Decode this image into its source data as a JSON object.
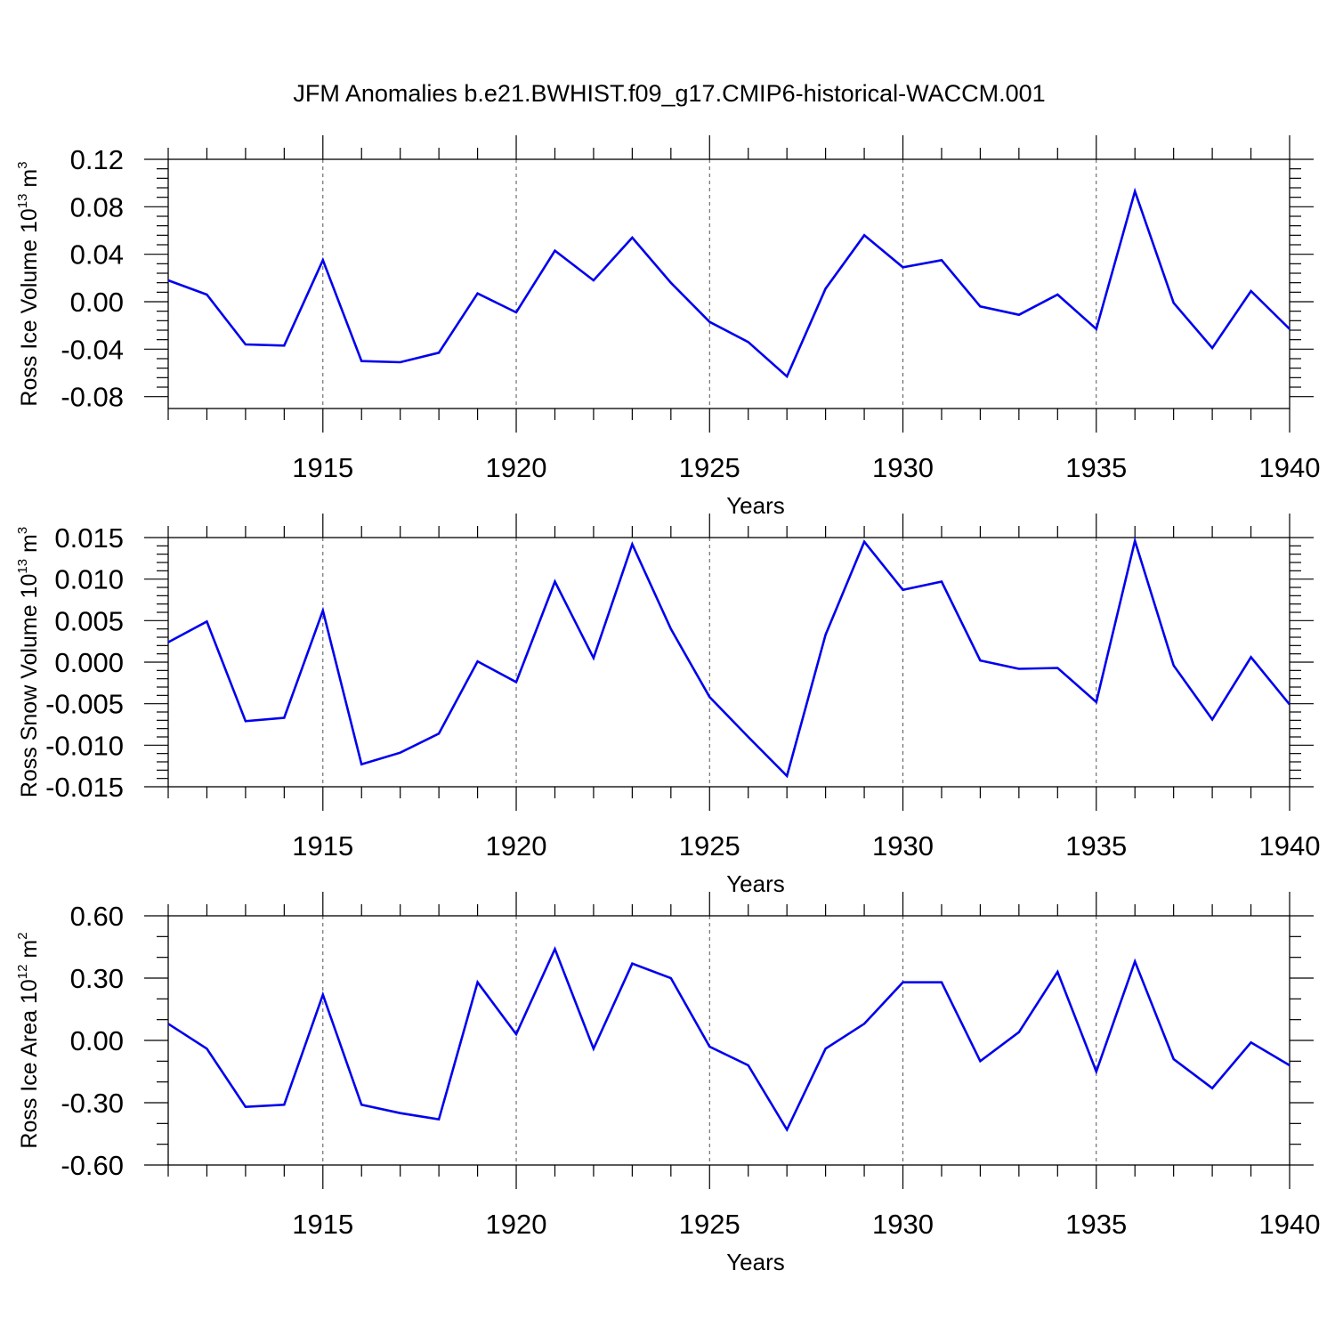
{
  "chart_data": {
    "title": "JFM Anomalies b.e21.BWHIST.f09_g17.CMIP6-historical-WACCM.001",
    "x": [
      1911,
      1912,
      1913,
      1914,
      1915,
      1916,
      1917,
      1918,
      1919,
      1920,
      1921,
      1922,
      1923,
      1924,
      1925,
      1926,
      1927,
      1928,
      1929,
      1930,
      1931,
      1932,
      1933,
      1934,
      1935,
      1936,
      1937,
      1938,
      1939,
      1940
    ],
    "panels": [
      {
        "type": "line",
        "ylabel": "Ross Ice Volume 10",
        "ylabel_exp": "13",
        "ylabel_unit": " m",
        "ylabel_unit_exp": "3",
        "xlabel": "Years",
        "xlim": [
          1911,
          1940
        ],
        "ylim": [
          -0.09,
          0.12
        ],
        "yticks": [
          0.12,
          0.08,
          0.04,
          0.0,
          -0.04,
          -0.08
        ],
        "ytick_labels": [
          "0.12",
          "0.08",
          "0.04",
          "0.00",
          "-0.04",
          "-0.08"
        ],
        "yminor_step": 0.008,
        "xticks": [
          1915,
          1920,
          1925,
          1930,
          1935,
          1940
        ],
        "xtick_labels": [
          "1915",
          "1920",
          "1925",
          "1930",
          "1935",
          "1940"
        ],
        "grid": "x",
        "series": [
          {
            "color": "#0000ee",
            "values": [
              0.018,
              0.006,
              -0.036,
              -0.037,
              0.035,
              -0.05,
              -0.051,
              -0.043,
              0.007,
              -0.009,
              0.043,
              0.018,
              0.054,
              0.016,
              -0.017,
              -0.034,
              -0.063,
              0.011,
              0.056,
              0.029,
              0.035,
              -0.004,
              -0.011,
              0.006,
              -0.023,
              0.093,
              -0.001,
              -0.039,
              0.009,
              -0.023
            ]
          }
        ]
      },
      {
        "type": "line",
        "ylabel": "Ross Snow Volume 10",
        "ylabel_exp": "13",
        "ylabel_unit": " m",
        "ylabel_unit_exp": "3",
        "xlabel": "Years",
        "xlim": [
          1911,
          1940
        ],
        "ylim": [
          -0.015,
          0.015
        ],
        "yticks": [
          0.015,
          0.01,
          0.005,
          0.0,
          -0.005,
          -0.01,
          -0.015
        ],
        "ytick_labels": [
          "0.015",
          "0.010",
          "0.005",
          "0.000",
          "-0.005",
          "-0.010",
          "-0.015"
        ],
        "yminor_step": 0.001,
        "xticks": [
          1915,
          1920,
          1925,
          1930,
          1935,
          1940
        ],
        "xtick_labels": [
          "1915",
          "1920",
          "1925",
          "1930",
          "1935",
          "1940"
        ],
        "grid": "x",
        "series": [
          {
            "color": "#0000ee",
            "values": [
              0.0024,
              0.0049,
              -0.0071,
              -0.0067,
              0.0062,
              -0.0123,
              -0.0109,
              -0.0086,
              0.0001,
              -0.0024,
              0.0097,
              0.0005,
              0.0142,
              0.004,
              -0.0042,
              -0.009,
              -0.0137,
              0.0033,
              0.0145,
              0.0087,
              0.0097,
              0.0002,
              -0.0008,
              -0.0007,
              -0.0048,
              0.0146,
              -0.0004,
              -0.0069,
              0.0006,
              -0.0051
            ]
          }
        ]
      },
      {
        "type": "line",
        "ylabel": "Ross Ice Area 10",
        "ylabel_exp": "12",
        "ylabel_unit": " m",
        "ylabel_unit_exp": "2",
        "xlabel": "Years",
        "xlim": [
          1911,
          1940
        ],
        "ylim": [
          -0.6,
          0.6
        ],
        "yticks": [
          0.6,
          0.3,
          0.0,
          -0.3,
          -0.6
        ],
        "ytick_labels": [
          "0.60",
          "0.30",
          "0.00",
          "-0.30",
          "-0.60"
        ],
        "yminor_step": 0.1,
        "xticks": [
          1915,
          1920,
          1925,
          1930,
          1935,
          1940
        ],
        "xtick_labels": [
          "1915",
          "1920",
          "1925",
          "1930",
          "1935",
          "1940"
        ],
        "grid": "x",
        "series": [
          {
            "color": "#0000ee",
            "values": [
              0.08,
              -0.04,
              -0.32,
              -0.31,
              0.22,
              -0.31,
              -0.35,
              -0.38,
              0.28,
              0.03,
              0.44,
              -0.04,
              0.37,
              0.3,
              -0.03,
              -0.12,
              -0.43,
              -0.04,
              0.08,
              0.28,
              0.28,
              -0.1,
              0.04,
              0.33,
              -0.15,
              0.38,
              -0.09,
              -0.23,
              -0.01,
              -0.12
            ]
          }
        ]
      }
    ]
  }
}
